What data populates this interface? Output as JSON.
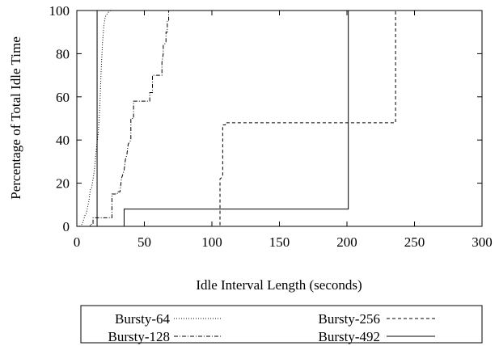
{
  "chart_data": {
    "type": "line",
    "title": "",
    "xlabel": "Idle Interval Length (seconds)",
    "ylabel": "Percentage of Total Idle Time",
    "xlim": [
      0,
      300
    ],
    "ylim": [
      0,
      100
    ],
    "xticks": [
      0,
      50,
      100,
      150,
      200,
      250,
      300
    ],
    "yticks": [
      0,
      20,
      40,
      60,
      80,
      100
    ],
    "xtick_labels": [
      "0",
      "50",
      "100",
      "150",
      "200",
      "250",
      "300"
    ],
    "ytick_labels": [
      "0",
      "20",
      "40",
      "60",
      "80",
      "100"
    ],
    "grid": false,
    "legend_position": "bottom",
    "series": [
      {
        "name": "Bursty-64",
        "color": "#000000",
        "dash": "dotted",
        "points": [
          [
            2,
            0
          ],
          [
            4,
            1
          ],
          [
            5,
            3
          ],
          [
            6,
            5
          ],
          [
            7,
            6
          ],
          [
            8,
            9
          ],
          [
            9,
            12
          ],
          [
            10,
            17
          ],
          [
            11,
            18
          ],
          [
            12,
            22
          ],
          [
            13,
            26
          ],
          [
            14,
            33
          ],
          [
            15,
            39
          ],
          [
            16,
            44
          ],
          [
            17,
            55
          ],
          [
            18,
            72
          ],
          [
            19,
            85
          ],
          [
            20,
            93
          ],
          [
            21,
            97
          ],
          [
            22,
            98
          ],
          [
            23,
            99
          ],
          [
            25,
            100
          ],
          [
            300,
            100
          ]
        ]
      },
      {
        "name": "Bursty-128",
        "color": "#000000",
        "dash": "dashdot",
        "points": [
          [
            2,
            0
          ],
          [
            10,
            0
          ],
          [
            10,
            1
          ],
          [
            12,
            1
          ],
          [
            12,
            4
          ],
          [
            26,
            4
          ],
          [
            26,
            15
          ],
          [
            30,
            15
          ],
          [
            30,
            16
          ],
          [
            32,
            16
          ],
          [
            33,
            22
          ],
          [
            35,
            26
          ],
          [
            36,
            31
          ],
          [
            37,
            33
          ],
          [
            38,
            38
          ],
          [
            40,
            40
          ],
          [
            40,
            50
          ],
          [
            42,
            50
          ],
          [
            42,
            58
          ],
          [
            54,
            58
          ],
          [
            54,
            62
          ],
          [
            56,
            62
          ],
          [
            56,
            70
          ],
          [
            63,
            70
          ],
          [
            63,
            76
          ],
          [
            64,
            80
          ],
          [
            64,
            84
          ],
          [
            66,
            85
          ],
          [
            66,
            90
          ],
          [
            67,
            90
          ],
          [
            67,
            95
          ],
          [
            68,
            95
          ],
          [
            68,
            100
          ],
          [
            300,
            100
          ]
        ]
      },
      {
        "name": "Bursty-256",
        "color": "#000000",
        "dash": "dashed",
        "points": [
          [
            2,
            0
          ],
          [
            106,
            0
          ],
          [
            106,
            22
          ],
          [
            108,
            23
          ],
          [
            108,
            47
          ],
          [
            110,
            47
          ],
          [
            110,
            48
          ],
          [
            236,
            48
          ],
          [
            236,
            100
          ],
          [
            300,
            100
          ]
        ]
      },
      {
        "name": "Bursty-492",
        "color": "#000000",
        "dash": "solid",
        "points": [
          [
            15,
            0
          ],
          [
            15,
            100
          ],
          [
            15,
            0
          ],
          [
            2,
            0
          ],
          [
            35,
            0
          ],
          [
            35,
            8
          ],
          [
            201,
            8
          ],
          [
            201,
            100
          ],
          [
            300,
            100
          ]
        ]
      }
    ]
  }
}
